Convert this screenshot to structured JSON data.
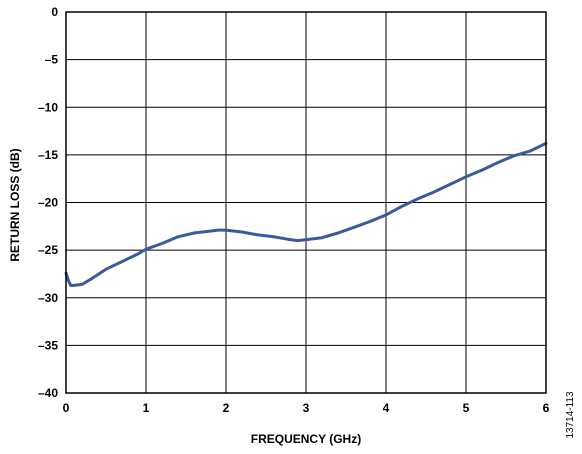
{
  "chart_data": {
    "type": "line",
    "xlabel": "FREQUENCY (GHz)",
    "ylabel": "RETURN LOSS (dB)",
    "xlim": [
      0,
      6
    ],
    "ylim": [
      -40,
      0
    ],
    "x_ticks": [
      "0",
      "1",
      "2",
      "3",
      "4",
      "5",
      "6"
    ],
    "y_ticks": [
      "0",
      "–5",
      "–10",
      "–15",
      "–20",
      "–25",
      "–30",
      "–35",
      "–40"
    ],
    "grid": true,
    "series_color": "#3b5a9a",
    "series": [
      {
        "x": [
          0.0,
          0.03,
          0.06,
          0.1,
          0.2,
          0.3,
          0.5,
          0.7,
          0.9,
          1.0,
          1.2,
          1.4,
          1.6,
          1.8,
          1.9,
          2.0,
          2.1,
          2.2,
          2.4,
          2.6,
          2.8,
          2.9,
          3.0,
          3.2,
          3.4,
          3.6,
          3.8,
          4.0,
          4.2,
          4.4,
          4.6,
          4.8,
          5.0,
          5.2,
          5.4,
          5.6,
          5.8,
          6.0
        ],
        "y": [
          -27.4,
          -28.2,
          -28.7,
          -28.7,
          -28.6,
          -28.1,
          -27.0,
          -26.2,
          -25.4,
          -24.9,
          -24.3,
          -23.6,
          -23.2,
          -23.0,
          -22.9,
          -22.9,
          -23.0,
          -23.1,
          -23.4,
          -23.6,
          -23.9,
          -24.0,
          -23.9,
          -23.7,
          -23.2,
          -22.6,
          -22.0,
          -21.3,
          -20.4,
          -19.6,
          -18.9,
          -18.1,
          -17.3,
          -16.6,
          -15.8,
          -15.1,
          -14.6,
          -13.8
        ]
      }
    ]
  },
  "figure_id": "13714-113"
}
